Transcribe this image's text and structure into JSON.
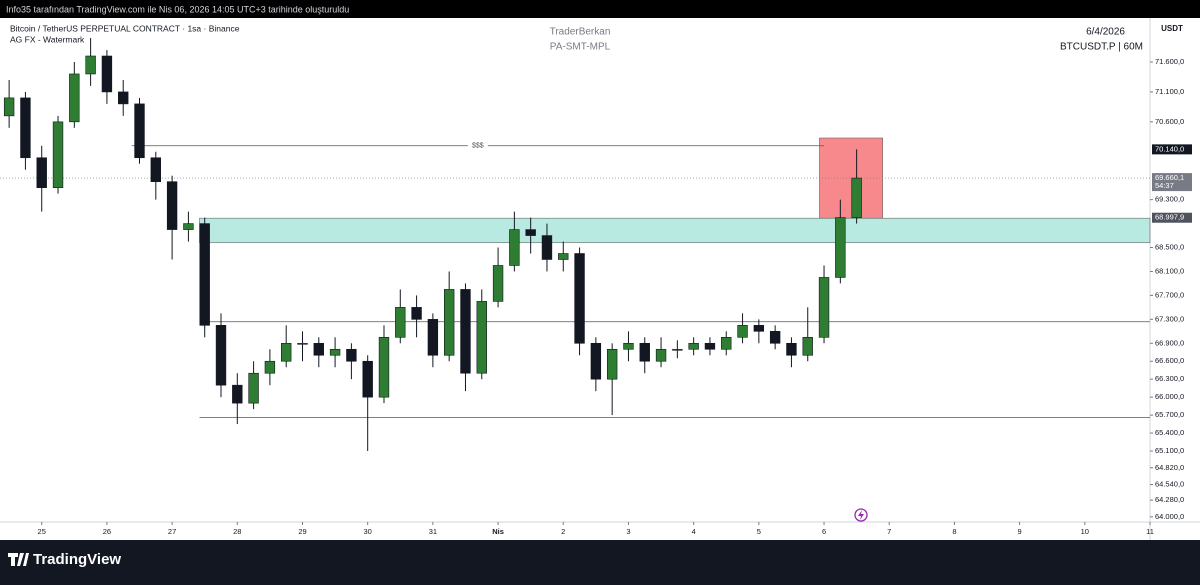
{
  "header": {
    "watermark_note": "Info35 tarafından TradingView.com ile Nis 06, 2026 14:05 UTC+3 tarihinde oluşturuldu",
    "brand": "TradingView"
  },
  "chart_data": {
    "type": "candlestick",
    "symbol": "Bitcoin / TetherUS PERPETUAL CONTRACT · 1sa · Binance",
    "indicator": "AG FX - Watermark",
    "author": "TraderBerkan",
    "author_tag": "PA-SMT-MPL",
    "date": "6/4/2026",
    "ticker": "BTCUSDT.P | 60M",
    "currency": "USDT",
    "up_color": "#2e7d32",
    "down_color": "#131722",
    "x": [
      -0.5,
      -0.25,
      0,
      0.25,
      0.5,
      0.75,
      1,
      1.25,
      1.5,
      1.75,
      2,
      2.25,
      2.5,
      2.75,
      3,
      3.25,
      3.5,
      3.75,
      4,
      4.25,
      4.5,
      4.75,
      5,
      5.25,
      5.5,
      5.75,
      6,
      6.25,
      6.5,
      6.75,
      7,
      7.25,
      7.5,
      7.75,
      8,
      8.25,
      8.5,
      8.75,
      9,
      9.25,
      9.5,
      9.75,
      10,
      10.25,
      10.5,
      10.75,
      11,
      11.25,
      11.5,
      11.75,
      12,
      12.25,
      12.5
    ],
    "open": [
      70700,
      71000,
      70000,
      69500,
      70600,
      71400,
      71700,
      71100,
      70900,
      70000,
      69600,
      68800,
      68900,
      67200,
      66200,
      65900,
      66400,
      66600,
      66900,
      66900,
      66700,
      66800,
      66600,
      66000,
      67000,
      67500,
      67300,
      66700,
      67800,
      66400,
      67600,
      68200,
      68800,
      68700,
      68300,
      68400,
      66900,
      66300,
      66800,
      66900,
      66600,
      66800,
      66800,
      66900,
      66800,
      67000,
      67200,
      67100,
      66900,
      66700,
      67000,
      68000,
      69000
    ],
    "high": [
      71300,
      71100,
      70200,
      70700,
      71600,
      72000,
      71800,
      71300,
      71000,
      70100,
      69700,
      69100,
      69000,
      67400,
      66400,
      66600,
      66800,
      67200,
      67100,
      67000,
      67000,
      66900,
      66700,
      67200,
      67800,
      67700,
      67400,
      68100,
      67900,
      67800,
      68500,
      69100,
      69000,
      68900,
      68600,
      68500,
      67000,
      66900,
      67100,
      67000,
      67000,
      66950,
      67000,
      67000,
      67100,
      67400,
      67300,
      67200,
      67000,
      67500,
      68200,
      69300,
      70140
    ],
    "low": [
      70500,
      69800,
      69100,
      69400,
      70500,
      71200,
      70900,
      70700,
      69900,
      69300,
      68300,
      68600,
      67000,
      66000,
      65550,
      65800,
      66200,
      66500,
      66600,
      66500,
      66500,
      66300,
      65100,
      65900,
      66900,
      67000,
      66500,
      66600,
      66100,
      66300,
      67500,
      68100,
      68400,
      68100,
      68100,
      66700,
      66100,
      65700,
      66600,
      66400,
      66500,
      66650,
      66700,
      66700,
      66700,
      66900,
      66900,
      66800,
      66500,
      66600,
      66900,
      67900,
      68900
    ],
    "close": [
      71000,
      70000,
      69500,
      70600,
      71400,
      71700,
      71100,
      70900,
      70000,
      69600,
      68800,
      68900,
      67200,
      66200,
      65900,
      66400,
      66600,
      66900,
      66900,
      66700,
      66800,
      66600,
      66000,
      67000,
      67500,
      67300,
      66700,
      67800,
      66400,
      67600,
      68200,
      68800,
      68700,
      68300,
      68400,
      66900,
      66300,
      66800,
      66900,
      66600,
      66800,
      66800,
      66900,
      66800,
      67000,
      67200,
      67100,
      66900,
      66700,
      67000,
      68000,
      69000,
      69660
    ],
    "xlim": [
      -0.64,
      17.0
    ],
    "ylim": [
      63914,
      72335
    ],
    "xticks": [
      {
        "value": 0,
        "label": "25"
      },
      {
        "value": 1,
        "label": "26"
      },
      {
        "value": 2,
        "label": "27"
      },
      {
        "value": 3,
        "label": "28"
      },
      {
        "value": 4,
        "label": "29"
      },
      {
        "value": 5,
        "label": "30"
      },
      {
        "value": 6,
        "label": "31"
      },
      {
        "value": 7,
        "label": "Nis"
      },
      {
        "value": 8,
        "label": "2"
      },
      {
        "value": 9,
        "label": "3"
      },
      {
        "value": 10,
        "label": "4"
      },
      {
        "value": 11,
        "label": "5"
      },
      {
        "value": 12,
        "label": "6"
      },
      {
        "value": 13,
        "label": "7"
      },
      {
        "value": 14,
        "label": "8"
      },
      {
        "value": 15,
        "label": "9"
      },
      {
        "value": 16,
        "label": "10"
      },
      {
        "value": 17,
        "label": "11"
      }
    ],
    "yticks": [
      {
        "value": 71600,
        "label": "71.600,0"
      },
      {
        "value": 71100,
        "label": "71.100,0"
      },
      {
        "value": 70600,
        "label": "70.600,0"
      },
      {
        "value": 69300,
        "label": "69.300,0"
      },
      {
        "value": 68500,
        "label": "68.500,0"
      },
      {
        "value": 68100,
        "label": "68.100,0"
      },
      {
        "value": 67700,
        "label": "67.700,0"
      },
      {
        "value": 67300,
        "label": "67.300,0"
      },
      {
        "value": 66900,
        "label": "66.900,0"
      },
      {
        "value": 66600,
        "label": "66.600,0"
      },
      {
        "value": 66300,
        "label": "66.300,0"
      },
      {
        "value": 66000,
        "label": "66.000,0"
      },
      {
        "value": 65700,
        "label": "65.700,0"
      },
      {
        "value": 65400,
        "label": "65.400,0"
      },
      {
        "value": 65100,
        "label": "65.100,0"
      },
      {
        "value": 64820,
        "label": "64.820,0"
      },
      {
        "value": 64540,
        "label": "64.540,0"
      },
      {
        "value": 64280,
        "label": "64.280,0"
      },
      {
        "value": 64000,
        "label": "64.000,0"
      }
    ],
    "zones": [
      {
        "low": 68580,
        "high": 68990,
        "from": 2.42,
        "color": "#b2e8df"
      },
      {
        "low": 68990,
        "high": 70330,
        "from": 11.93,
        "to": 12.9,
        "color": "#f77c80"
      }
    ],
    "levels": [
      {
        "value": 70200,
        "from": 1.38,
        "to": 12.0,
        "label": "$$$"
      },
      {
        "value": 67260,
        "from": 2.42
      },
      {
        "value": 65660,
        "from": 2.42
      }
    ],
    "price_labels": [
      {
        "value": 70140,
        "label": "70.140,0",
        "color": "#131722"
      },
      {
        "value": 69660.1,
        "label": "69.660,1",
        "sub": "54:37",
        "color": "#787b86",
        "last": true
      },
      {
        "value": 68997.9,
        "label": "68.997,9",
        "color": "#50535e"
      }
    ]
  }
}
